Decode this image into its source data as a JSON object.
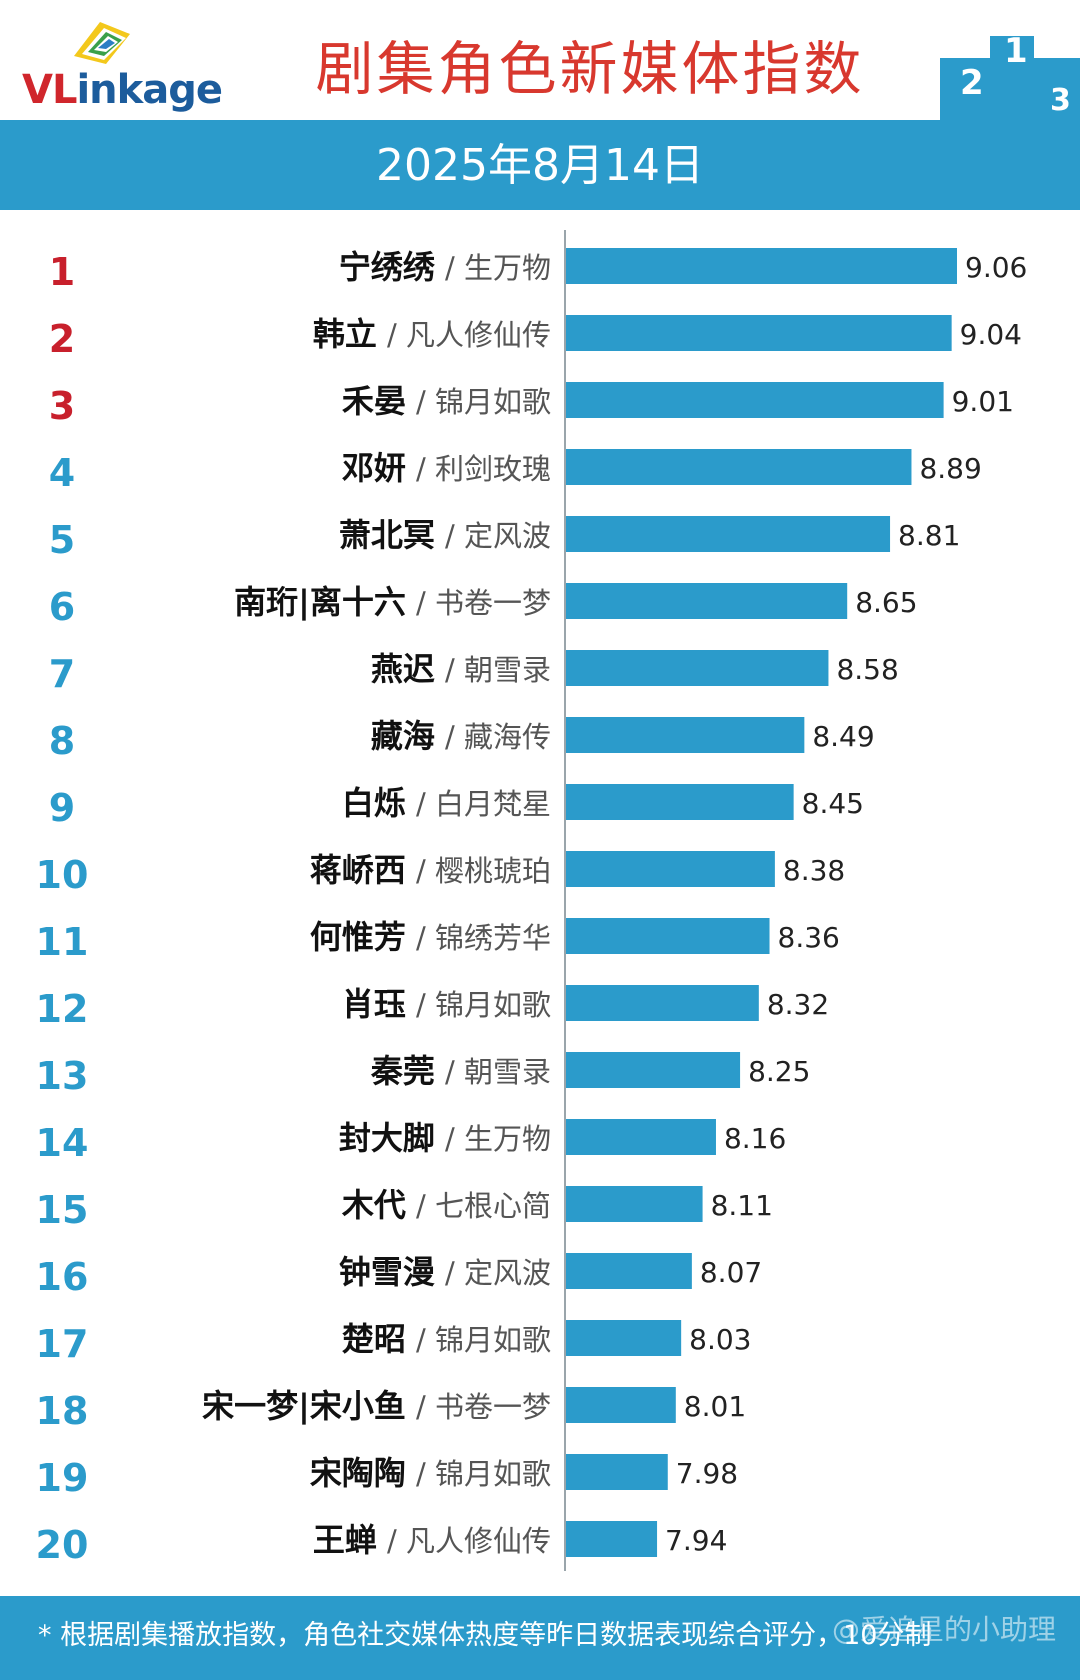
{
  "header": {
    "logo_text_a": "VL",
    "logo_text_b": "inkage",
    "title": "剧集角色新媒体指数",
    "podium_labels": [
      "2",
      "1",
      "3"
    ]
  },
  "date_bar": {
    "date": "2025年8月14日"
  },
  "colors": {
    "bar": "#2b9bcb",
    "rank_top3": "#c8202c",
    "rank_other": "#2b9bcb",
    "title": "#d8382e"
  },
  "chart_data": {
    "type": "bar",
    "orientation": "horizontal",
    "title": "剧集角色新媒体指数",
    "xlim": [
      0,
      9.4
    ],
    "grid": false,
    "ranks": [
      "1",
      "2",
      "3",
      "4",
      "5",
      "6",
      "7",
      "8",
      "9",
      "10",
      "11",
      "12",
      "13",
      "14",
      "15",
      "16",
      "17",
      "18",
      "19",
      "20"
    ],
    "categories": [
      "宁绣绣",
      "韩立",
      "禾晏",
      "邓妍",
      "萧北冥",
      "南珩|离十六",
      "燕迟",
      "藏海",
      "白烁",
      "蒋峤西",
      "何惟芳",
      "肖珏",
      "秦莞",
      "封大脚",
      "木代",
      "钟雪漫",
      "楚昭",
      "宋一梦|宋小鱼",
      "宋陶陶",
      "王蝉"
    ],
    "dramas": [
      "/ 生万物",
      "/ 凡人修仙传",
      "/ 锦月如歌",
      "/ 利剑玫瑰",
      "/ 定风波",
      "/ 书卷一梦",
      "/ 朝雪录",
      "/ 藏海传",
      "/ 白月梵星",
      "/ 樱桃琥珀",
      "/ 锦绣芳华",
      "/ 锦月如歌",
      "/ 朝雪录",
      "/ 生万物",
      "/ 七根心简",
      "/ 定风波",
      "/ 锦月如歌",
      "/ 书卷一梦",
      "/ 锦月如歌",
      "/ 凡人修仙传"
    ],
    "values": [
      9.06,
      9.04,
      9.01,
      8.89,
      8.81,
      8.65,
      8.58,
      8.49,
      8.45,
      8.38,
      8.36,
      8.32,
      8.25,
      8.16,
      8.11,
      8.07,
      8.03,
      8.01,
      7.98,
      7.94
    ],
    "value_labels": [
      "9.06",
      "9.04",
      "9.01",
      "8.89",
      "8.81",
      "8.65",
      "8.58",
      "8.49",
      "8.45",
      "8.38",
      "8.36",
      "8.32",
      "8.25",
      "8.16",
      "8.11",
      "8.07",
      "8.03",
      "8.01",
      "7.98",
      "7.94"
    ]
  },
  "footer": {
    "note": "* 根据剧集播放指数，角色社交媒体热度等昨日数据表现综合评分，10分制",
    "watermark": "@爱追星的小助理"
  }
}
